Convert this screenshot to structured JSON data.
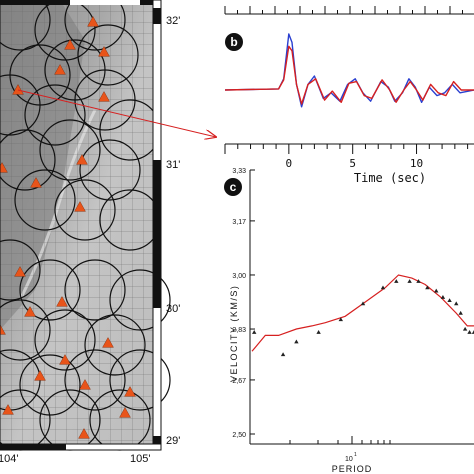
{
  "map": {
    "lat_labels": [
      "32'",
      "31'",
      "30'",
      "29'"
    ],
    "lon_labels": [
      "104'",
      "105'"
    ],
    "station_color": "#e8541a",
    "circle_color": "#111111"
  },
  "panel_b": {
    "letter": "b",
    "chart_data": {
      "type": "line",
      "xlabel": "Time (sec)",
      "ticks": [
        "0",
        "5",
        "10"
      ],
      "xlim": [
        -5,
        14.5
      ],
      "series": [
        {
          "color": "#2a3fd0",
          "points": [
            [
              -5,
              0
            ],
            [
              -0.8,
              0.02
            ],
            [
              -0.4,
              0.2
            ],
            [
              0,
              1.0
            ],
            [
              0.25,
              0.85
            ],
            [
              0.6,
              0.1
            ],
            [
              1.0,
              -0.3
            ],
            [
              1.5,
              0.1
            ],
            [
              2.0,
              0.25
            ],
            [
              2.7,
              -0.15
            ],
            [
              3.3,
              -0.05
            ],
            [
              4.0,
              -0.2
            ],
            [
              4.6,
              0.1
            ],
            [
              5.2,
              0.2
            ],
            [
              5.8,
              -0.05
            ],
            [
              6.4,
              -0.2
            ],
            [
              7.2,
              0.15
            ],
            [
              7.8,
              0.05
            ],
            [
              8.3,
              -0.2
            ],
            [
              8.9,
              -0.05
            ],
            [
              9.4,
              0.2
            ],
            [
              9.9,
              0.05
            ],
            [
              10.4,
              -0.22
            ],
            [
              11.0,
              0.05
            ],
            [
              11.6,
              -0.1
            ],
            [
              12.2,
              -0.05
            ],
            [
              12.8,
              0.1
            ],
            [
              13.4,
              -0.05
            ],
            [
              14.5,
              0.0
            ]
          ]
        },
        {
          "color": "#d62020",
          "points": [
            [
              -5,
              0
            ],
            [
              -0.8,
              0.02
            ],
            [
              -0.4,
              0.18
            ],
            [
              0,
              0.78
            ],
            [
              0.25,
              0.7
            ],
            [
              0.6,
              0.1
            ],
            [
              1.0,
              -0.25
            ],
            [
              1.5,
              0.1
            ],
            [
              2.1,
              0.2
            ],
            [
              2.8,
              -0.18
            ],
            [
              3.4,
              -0.02
            ],
            [
              4.1,
              -0.22
            ],
            [
              4.7,
              0.12
            ],
            [
              5.3,
              0.15
            ],
            [
              5.9,
              -0.1
            ],
            [
              6.5,
              -0.15
            ],
            [
              7.3,
              0.18
            ],
            [
              7.9,
              0.0
            ],
            [
              8.4,
              -0.22
            ],
            [
              9.0,
              0.0
            ],
            [
              9.5,
              0.15
            ],
            [
              10.0,
              0.0
            ],
            [
              10.5,
              -0.18
            ],
            [
              11.1,
              0.1
            ],
            [
              11.7,
              -0.05
            ],
            [
              12.3,
              -0.1
            ],
            [
              12.9,
              0.15
            ],
            [
              13.5,
              0.0
            ],
            [
              14.5,
              0.0
            ]
          ]
        }
      ]
    }
  },
  "panel_c": {
    "letter": "c",
    "chart_data": {
      "type": "line",
      "xlabel": "PERIOD",
      "ylabel": "VELOCITY (KM/S)",
      "x_tick_label": "10",
      "x_tick_exp": "1",
      "y_ticks": [
        "3,33",
        "3,17",
        "3,00",
        "2,83",
        "2,67",
        "2,50"
      ],
      "ylim": [
        2.5,
        3.33
      ],
      "model": {
        "color": "#d62020",
        "x": [
          0,
          0.06,
          0.12,
          0.2,
          0.27,
          0.33,
          0.42,
          0.5,
          0.6,
          0.66,
          0.72,
          0.78,
          0.85,
          0.92,
          0.97,
          1.0
        ],
        "y": [
          2.76,
          2.81,
          2.81,
          2.83,
          2.84,
          2.85,
          2.87,
          2.91,
          2.96,
          3.0,
          2.99,
          2.97,
          2.93,
          2.88,
          2.84,
          2.84
        ]
      },
      "observed": {
        "color": "#222222",
        "x": [
          0.01,
          0.14,
          0.2,
          0.3,
          0.4,
          0.5,
          0.59,
          0.65,
          0.71,
          0.75,
          0.79,
          0.83,
          0.86,
          0.89,
          0.92,
          0.94,
          0.96,
          0.98,
          1.0
        ],
        "y": [
          2.82,
          2.75,
          2.79,
          2.82,
          2.86,
          2.91,
          2.96,
          2.98,
          2.98,
          2.98,
          2.96,
          2.95,
          2.93,
          2.92,
          2.91,
          2.88,
          2.83,
          2.82,
          2.82
        ]
      }
    }
  }
}
